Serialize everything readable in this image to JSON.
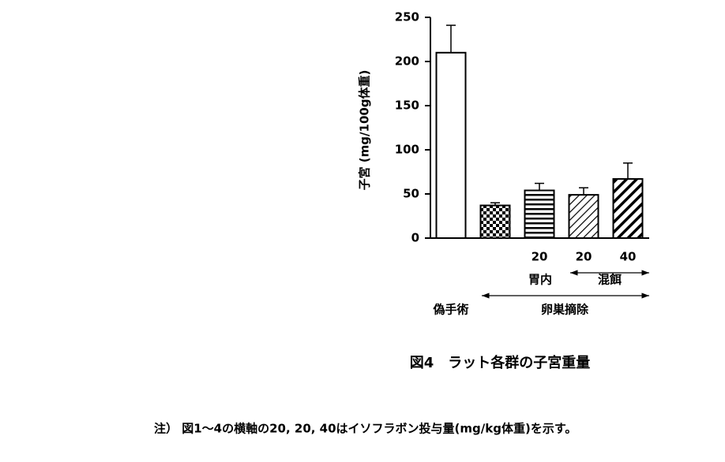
{
  "chart_data": {
    "type": "bar",
    "y_label": "子宮 (mg/100g体重)",
    "categories": [
      null,
      null,
      "20",
      "20",
      "40"
    ],
    "values": [
      210,
      37,
      54,
      49,
      67
    ],
    "errors": [
      31,
      3,
      8,
      8,
      18
    ],
    "patterns": [
      "none",
      "checker",
      "hlines",
      "diag-thin",
      "diag-thick"
    ],
    "color": "#000000",
    "ylim": [
      0,
      250
    ],
    "yticks": [
      0,
      50,
      100,
      150,
      200,
      250
    ],
    "group_labels": [
      "胃内",
      "混餌",
      "偽手術",
      "卵巣摘除"
    ],
    "caption": "図4　ラット各群の子宮重量",
    "note": "注）  図1～4の横軸の20, 20, 40はイソフラボン投与量(mg/kg体重)を示す。"
  }
}
